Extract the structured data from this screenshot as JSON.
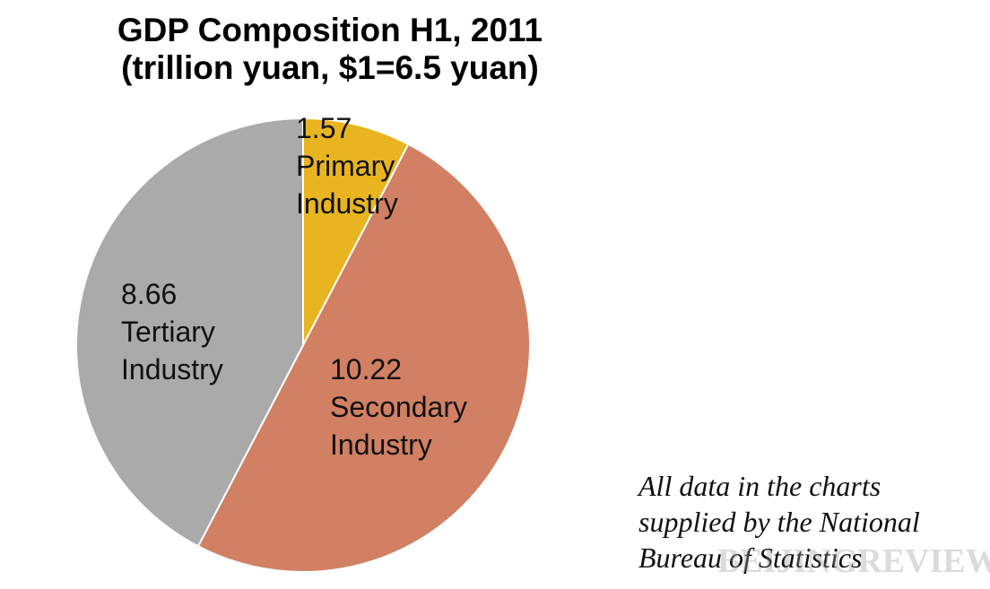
{
  "chart_data": {
    "type": "pie",
    "title": "GDP Composition H1, 2011",
    "subtitle": "(trillion yuan, $1=6.5 yuan)",
    "categories": [
      "Primary Industry",
      "Secondary Industry",
      "Tertiary Industry"
    ],
    "values": [
      1.57,
      10.22,
      8.66
    ],
    "colors": [
      "#e8b521",
      "#d18063",
      "#a9aaa9"
    ],
    "note": [
      "All data in the charts",
      "supplied by the National",
      "Bureau of Statistics"
    ],
    "watermark": "BEIJINGREVIEW.com.cn"
  }
}
